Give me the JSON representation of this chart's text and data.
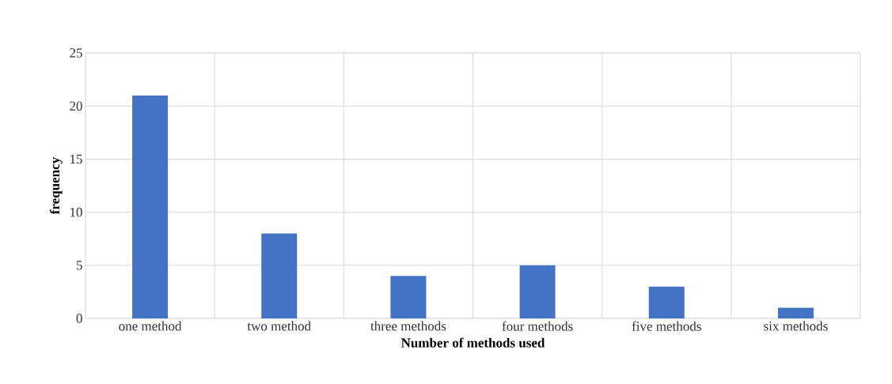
{
  "chart_data": {
    "type": "bar",
    "xlabel": "Number of methods used",
    "ylabel": "frequency",
    "categories": [
      "one method",
      "two method",
      "three methods",
      "four methods",
      "five methods",
      "six methods"
    ],
    "values": [
      21,
      8,
      4,
      5,
      3,
      1
    ],
    "color": "#4472c4",
    "ylim": [
      0,
      25
    ],
    "yticks": [
      0,
      5,
      10,
      15,
      20,
      25
    ],
    "grid": true
  }
}
